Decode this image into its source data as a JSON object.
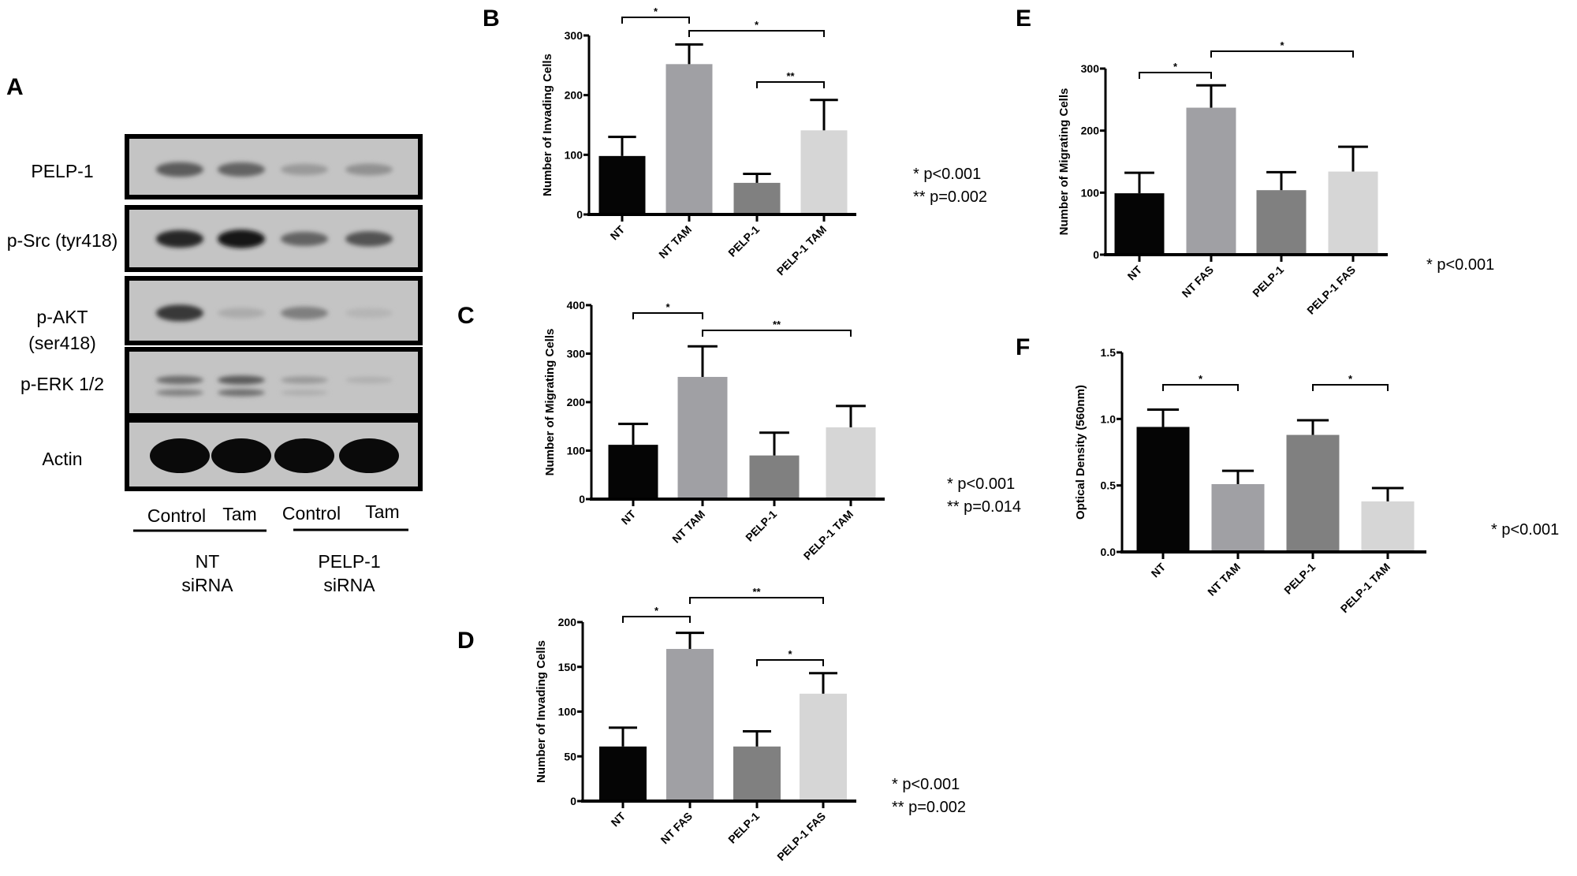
{
  "figure": {
    "panel_a": {
      "letter": "A",
      "rows": [
        {
          "label_lines": [
            "PELP-1"
          ],
          "bands": [
            0.55,
            0.5,
            0.2,
            0.25
          ]
        },
        {
          "label_lines": [
            "p-Src (tyr418)"
          ],
          "bands": [
            0.85,
            0.95,
            0.5,
            0.6
          ]
        },
        {
          "label_lines": [
            "p-AKT",
            "(ser418)"
          ],
          "bands": [
            0.75,
            0.1,
            0.35,
            0.05
          ]
        },
        {
          "label_lines": [
            "p-ERK 1/2"
          ],
          "bands": [
            0.45,
            0.55,
            0.2,
            0.08
          ]
        },
        {
          "label_lines": [
            "Actin"
          ],
          "bands": [
            1.0,
            1.0,
            1.0,
            1.0
          ]
        }
      ],
      "lanes": [
        "Control",
        "Tam",
        "Control",
        "Tam"
      ],
      "groups": [
        {
          "lines": [
            "NT",
            "siRNA"
          ]
        },
        {
          "lines": [
            "PELP-1",
            "siRNA"
          ]
        }
      ]
    }
  },
  "colors": {
    "bar_1": "#050505",
    "bar_2": "#a0a0a4",
    "bar_3": "#808080",
    "bar_4": "#d6d6d6"
  },
  "chart_data": [
    {
      "panel": "B",
      "type": "bar",
      "ylabel": "Number of Invading Cells",
      "categories": [
        "NT",
        "NT TAM",
        "PELP-1",
        "PELP-1 TAM"
      ],
      "values": [
        98,
        252,
        53,
        141
      ],
      "errors": [
        32,
        33,
        15,
        51
      ],
      "ylim": [
        0,
        300
      ],
      "yticks": [
        0,
        100,
        200,
        300
      ],
      "ytick_labels": [
        "0",
        "100",
        "200",
        "300"
      ],
      "grid": false,
      "significance": [
        {
          "from": 0,
          "to": 1,
          "label": "*"
        },
        {
          "from": 1,
          "to": 3,
          "label": "*"
        },
        {
          "from": 2,
          "to": 3,
          "label": "**"
        }
      ],
      "legend": [
        "* p<0.001",
        "** p=0.002"
      ]
    },
    {
      "panel": "C",
      "type": "bar",
      "ylabel": "Number of Migrating Cells",
      "categories": [
        "NT",
        "NT TAM",
        "PELP-1",
        "PELP-1 TAM"
      ],
      "values": [
        112,
        252,
        90,
        148
      ],
      "errors": [
        43,
        63,
        47,
        44
      ],
      "ylim": [
        0,
        400
      ],
      "yticks": [
        0,
        100,
        200,
        300,
        400
      ],
      "ytick_labels": [
        "0",
        "100",
        "200",
        "300",
        "400"
      ],
      "grid": false,
      "significance": [
        {
          "from": 0,
          "to": 1,
          "label": "*"
        },
        {
          "from": 1,
          "to": 3,
          "label": "**"
        }
      ],
      "legend": [
        "* p<0.001",
        "** p=0.014"
      ]
    },
    {
      "panel": "D",
      "type": "bar",
      "ylabel": "Number of Invading Cells",
      "categories": [
        "NT",
        "NT FAS",
        "PELP-1",
        "PELP-1 FAS"
      ],
      "values": [
        61,
        170,
        61,
        120
      ],
      "errors": [
        21,
        18,
        17,
        23
      ],
      "ylim": [
        0,
        200
      ],
      "yticks": [
        0,
        50,
        100,
        150,
        200
      ],
      "ytick_labels": [
        "0",
        "50",
        "100",
        "150",
        "200"
      ],
      "grid": false,
      "significance": [
        {
          "from": 0,
          "to": 1,
          "label": "*"
        },
        {
          "from": 1,
          "to": 3,
          "label": "**"
        },
        {
          "from": 2,
          "to": 3,
          "label": "*"
        }
      ],
      "legend": [
        "* p<0.001",
        "** p=0.002"
      ]
    },
    {
      "panel": "E",
      "type": "bar",
      "ylabel": "Number of Migrating Cells",
      "categories": [
        "NT",
        "NT FAS",
        "PELP-1",
        "PELP-1 FAS"
      ],
      "values": [
        99,
        237,
        104,
        134
      ],
      "errors": [
        33,
        36,
        29,
        40
      ],
      "ylim": [
        0,
        300
      ],
      "yticks": [
        0,
        100,
        200,
        300
      ],
      "ytick_labels": [
        "0",
        "100",
        "200",
        "300"
      ],
      "grid": false,
      "significance": [
        {
          "from": 0,
          "to": 1,
          "label": "*"
        },
        {
          "from": 1,
          "to": 3,
          "label": "*"
        }
      ],
      "legend": [
        "* p<0.001"
      ]
    },
    {
      "panel": "F",
      "type": "bar",
      "ylabel": "Optical Density (560nm)",
      "categories": [
        "NT",
        "NT TAM",
        "PELP-1",
        "PELP-1 TAM"
      ],
      "values": [
        0.94,
        0.51,
        0.88,
        0.38
      ],
      "errors": [
        0.13,
        0.1,
        0.11,
        0.1
      ],
      "ylim": [
        0,
        1.5
      ],
      "yticks": [
        0,
        0.5,
        1.0,
        1.5
      ],
      "ytick_labels": [
        "0.0",
        "0.5",
        "1.0",
        "1.5"
      ],
      "grid": false,
      "significance": [
        {
          "from": 0,
          "to": 1,
          "label": "*"
        },
        {
          "from": 2,
          "to": 3,
          "label": "*"
        }
      ],
      "legend": [
        "* p<0.001"
      ]
    }
  ]
}
